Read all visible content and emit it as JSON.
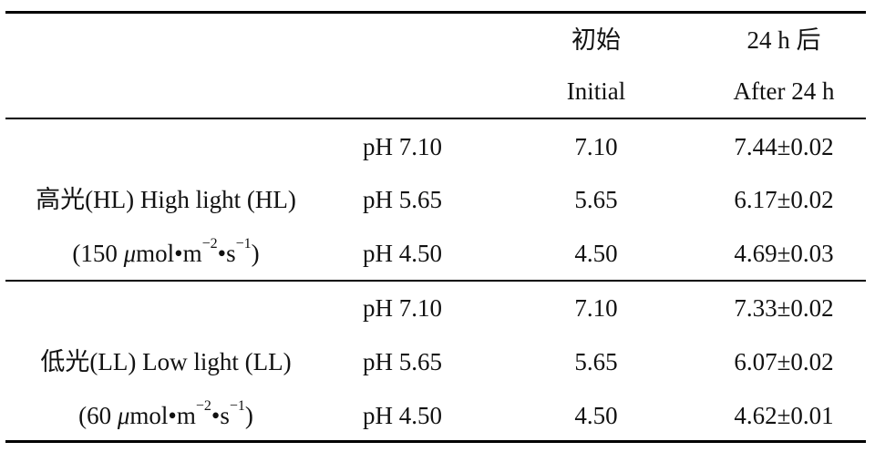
{
  "header": {
    "col_initial_cn": "初始",
    "col_initial_en": "Initial",
    "col_after_cn": "24 h 后",
    "col_after_en": "After 24 h"
  },
  "groups": [
    {
      "label_line1": "高光(HL) High light (HL)",
      "label_line2_prefix": "(150 ",
      "label_line2_mu": "μ",
      "label_line2_mid": "mol•m",
      "label_line2_exp1": "−2",
      "label_line2_dot": "•s",
      "label_line2_exp2": "−1",
      "label_line2_suffix": ")",
      "rows": [
        {
          "ph": "pH 7.10",
          "initial": "7.10",
          "after": "7.44±0.02"
        },
        {
          "ph": "pH 5.65",
          "initial": "5.65",
          "after": "6.17±0.02"
        },
        {
          "ph": "pH 4.50",
          "initial": "4.50",
          "after": "4.69±0.03"
        }
      ]
    },
    {
      "label_line1": "低光(LL) Low light (LL)",
      "label_line2_prefix": "(60 ",
      "label_line2_mu": "μ",
      "label_line2_mid": "mol•m",
      "label_line2_exp1": "−2",
      "label_line2_dot": "•s",
      "label_line2_exp2": "−1",
      "label_line2_suffix": ")",
      "rows": [
        {
          "ph": "pH 7.10",
          "initial": "7.10",
          "after": "7.33±0.02"
        },
        {
          "ph": "pH 5.65",
          "initial": "5.65",
          "after": "6.07±0.02"
        },
        {
          "ph": "pH 4.50",
          "initial": "4.50",
          "after": "4.62±0.01"
        }
      ]
    }
  ]
}
